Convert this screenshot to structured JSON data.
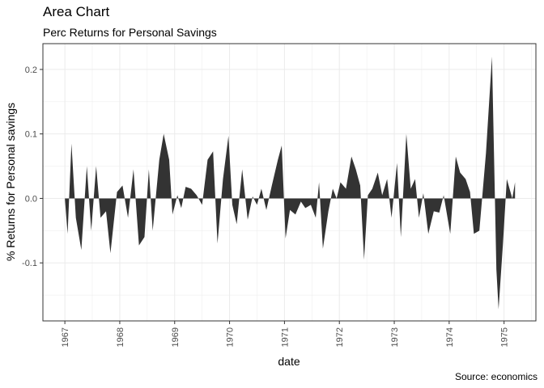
{
  "chart_data": {
    "type": "area",
    "title": "Area Chart",
    "subtitle": "Perc Returns for Personal Savings",
    "caption": "Source: economics",
    "xlabel": "date",
    "ylabel": "% Returns for Personal savings",
    "ylim": [
      -0.19,
      0.24
    ],
    "xlim": [
      1966.6,
      1975.58
    ],
    "y_ticks": [
      {
        "value": -0.1,
        "label": "-0.1"
      },
      {
        "value": 0.0,
        "label": "0.0"
      },
      {
        "value": 0.1,
        "label": "0.1"
      },
      {
        "value": 0.2,
        "label": "0.2"
      }
    ],
    "x_ticks": [
      {
        "value": 1967.0,
        "label": "1967"
      },
      {
        "value": 1968.0,
        "label": "1968"
      },
      {
        "value": 1969.0,
        "label": "1969"
      },
      {
        "value": 1970.0,
        "label": "1970"
      },
      {
        "value": 1971.0,
        "label": "1971"
      },
      {
        "value": 1972.0,
        "label": "1972"
      },
      {
        "value": 1973.0,
        "label": "1973"
      },
      {
        "value": 1974.0,
        "label": "1974"
      },
      {
        "value": 1975.0,
        "label": "1975"
      }
    ],
    "grid": true,
    "fill_color": "#333333",
    "panel_border_color": "#333333",
    "grid_color": "#ebebeb",
    "points": [
      [
        1967.0,
        0.0
      ],
      [
        1967.05,
        -0.055
      ],
      [
        1967.12,
        0.085
      ],
      [
        1967.2,
        -0.03
      ],
      [
        1967.3,
        -0.08
      ],
      [
        1967.4,
        0.05
      ],
      [
        1967.48,
        -0.05
      ],
      [
        1967.57,
        0.05
      ],
      [
        1967.65,
        -0.03
      ],
      [
        1967.75,
        -0.02
      ],
      [
        1967.83,
        -0.085
      ],
      [
        1967.95,
        0.01
      ],
      [
        1968.05,
        0.02
      ],
      [
        1968.15,
        -0.03
      ],
      [
        1968.25,
        0.045
      ],
      [
        1968.35,
        -0.073
      ],
      [
        1968.45,
        -0.06
      ],
      [
        1968.53,
        0.045
      ],
      [
        1968.6,
        -0.05
      ],
      [
        1968.72,
        0.06
      ],
      [
        1968.8,
        0.1
      ],
      [
        1968.9,
        0.06
      ],
      [
        1968.96,
        -0.025
      ],
      [
        1969.05,
        0.005
      ],
      [
        1969.12,
        -0.015
      ],
      [
        1969.2,
        0.018
      ],
      [
        1969.3,
        0.015
      ],
      [
        1969.4,
        0.005
      ],
      [
        1969.5,
        -0.01
      ],
      [
        1969.6,
        0.06
      ],
      [
        1969.7,
        0.073
      ],
      [
        1969.78,
        -0.07
      ],
      [
        1969.88,
        0.03
      ],
      [
        1969.98,
        0.097
      ],
      [
        1970.05,
        -0.01
      ],
      [
        1970.13,
        -0.04
      ],
      [
        1970.23,
        0.045
      ],
      [
        1970.33,
        -0.033
      ],
      [
        1970.42,
        0.003
      ],
      [
        1970.5,
        -0.01
      ],
      [
        1970.58,
        0.015
      ],
      [
        1970.67,
        -0.018
      ],
      [
        1970.77,
        0.02
      ],
      [
        1970.88,
        0.06
      ],
      [
        1970.95,
        0.082
      ],
      [
        1971.02,
        -0.062
      ],
      [
        1971.1,
        -0.018
      ],
      [
        1971.2,
        -0.025
      ],
      [
        1971.3,
        -0.005
      ],
      [
        1971.38,
        -0.015
      ],
      [
        1971.48,
        -0.01
      ],
      [
        1971.57,
        -0.03
      ],
      [
        1971.63,
        0.025
      ],
      [
        1971.7,
        -0.078
      ],
      [
        1971.8,
        -0.02
      ],
      [
        1971.88,
        0.015
      ],
      [
        1971.95,
        0.0
      ],
      [
        1972.02,
        0.025
      ],
      [
        1972.12,
        0.015
      ],
      [
        1972.22,
        0.065
      ],
      [
        1972.3,
        0.045
      ],
      [
        1972.38,
        0.02
      ],
      [
        1972.45,
        -0.095
      ],
      [
        1972.52,
        0.005
      ],
      [
        1972.6,
        0.015
      ],
      [
        1972.7,
        0.04
      ],
      [
        1972.78,
        0.005
      ],
      [
        1972.87,
        0.03
      ],
      [
        1972.95,
        -0.03
      ],
      [
        1973.05,
        0.055
      ],
      [
        1973.12,
        -0.06
      ],
      [
        1973.22,
        0.1
      ],
      [
        1973.3,
        0.015
      ],
      [
        1973.38,
        0.03
      ],
      [
        1973.45,
        -0.03
      ],
      [
        1973.53,
        0.008
      ],
      [
        1973.62,
        -0.055
      ],
      [
        1973.72,
        -0.02
      ],
      [
        1973.82,
        -0.022
      ],
      [
        1973.9,
        0.005
      ],
      [
        1974.02,
        -0.055
      ],
      [
        1974.12,
        0.065
      ],
      [
        1974.2,
        0.04
      ],
      [
        1974.3,
        0.03
      ],
      [
        1974.38,
        0.01
      ],
      [
        1974.45,
        -0.055
      ],
      [
        1974.55,
        -0.05
      ],
      [
        1974.67,
        0.07
      ],
      [
        1974.78,
        0.22
      ],
      [
        1974.86,
        -0.11
      ],
      [
        1974.9,
        -0.172
      ],
      [
        1974.98,
        -0.07
      ],
      [
        1975.05,
        0.03
      ],
      [
        1975.1,
        0.015
      ],
      [
        1975.15,
        0.0
      ],
      [
        1975.2,
        0.025
      ]
    ]
  }
}
